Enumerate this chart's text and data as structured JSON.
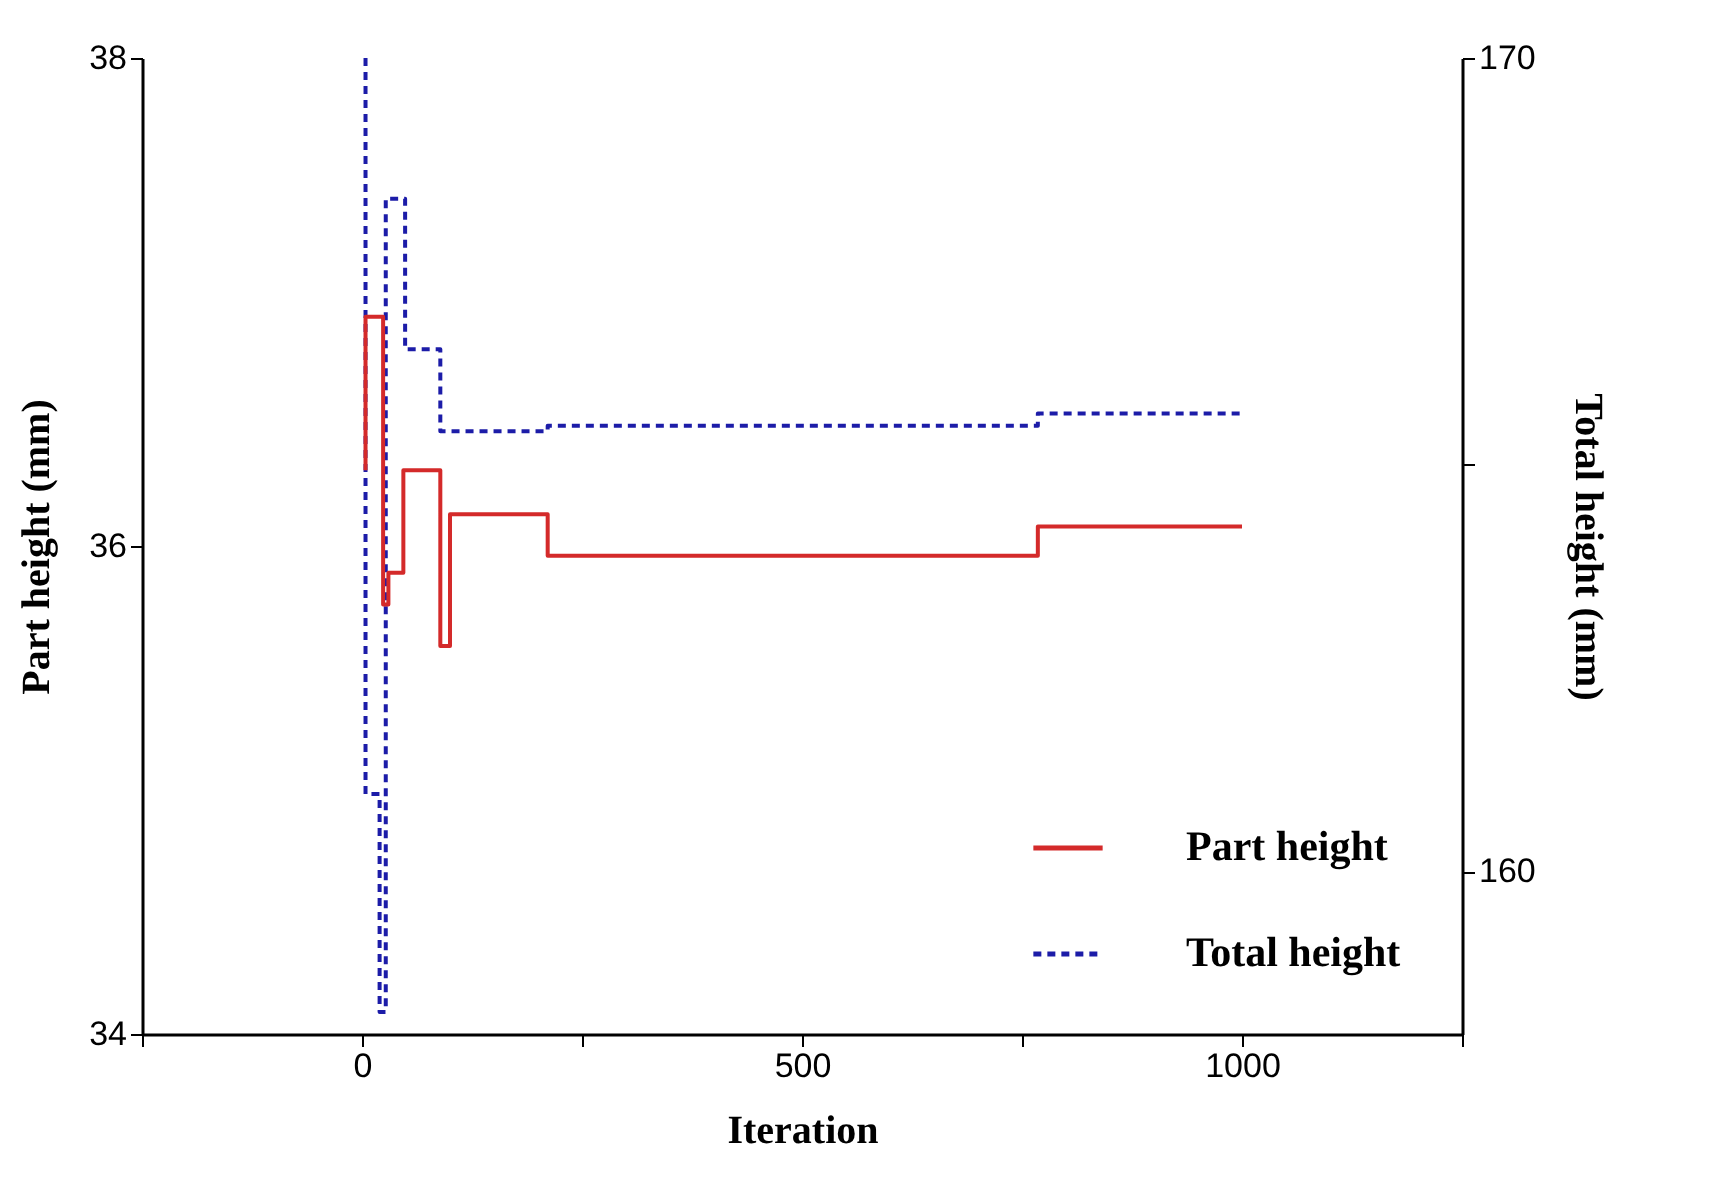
{
  "chart_data": {
    "type": "step",
    "xlabel": "Iteration",
    "ylabel": "Part height (mm)",
    "y2label": "Total height (mm)",
    "xlim": [
      -250,
      1250
    ],
    "xticks": [
      {
        "value": -250,
        "label": null
      },
      0,
      {
        "value": 250,
        "label": null
      },
      500,
      {
        "value": 750,
        "label": null
      },
      1000,
      {
        "value": 1250,
        "label": null
      }
    ],
    "ylim": [
      34,
      38
    ],
    "yticks": [
      34,
      36,
      38
    ],
    "y2lim": [
      158,
      170
    ],
    "y2ticks": [
      160,
      {
        "value": 165,
        "label": null
      },
      170
    ],
    "legend": "bottom right",
    "grid": false,
    "series": [
      {
        "name": "Part height",
        "color": "#d42a2a",
        "line_style": "solid",
        "x": [
          4,
          4,
          24,
          30,
          47,
          89,
          100,
          211,
          768,
          1000
        ],
        "values": [
          36.31,
          36.94,
          35.76,
          35.89,
          36.31,
          35.59,
          36.13,
          35.96,
          36.08,
          36.08
        ]
      },
      {
        "name": "Total height",
        "color": "#1c1ca8",
        "line_style": "dashed",
        "axis": "y2",
        "x": [
          4,
          4,
          20,
          20,
          27,
          49,
          89,
          211,
          768,
          1000
        ],
        "values": [
          170,
          160.95,
          160.86,
          158.27,
          168.27,
          166.42,
          165.41,
          165.48,
          165.63,
          165.63
        ]
      }
    ]
  }
}
